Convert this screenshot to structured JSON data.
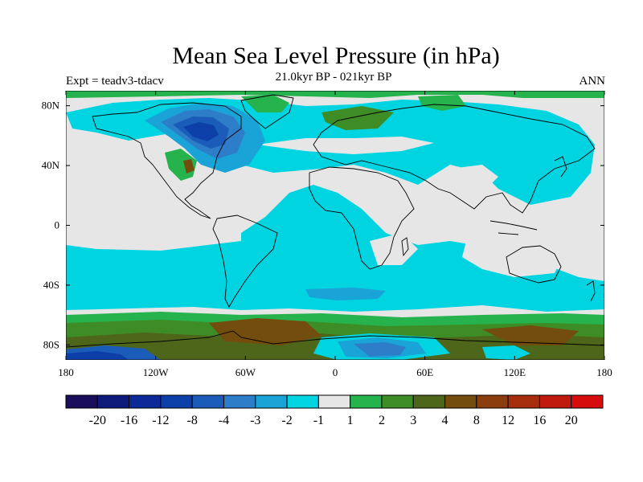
{
  "title": "Mean Sea Level Pressure (in hPa)",
  "subtitle": "21.0kyr BP - 021kyr BP",
  "left_string": "Expt = teadv3-tdacv",
  "right_string": "ANN",
  "map": {
    "lon_range": [
      -180,
      180
    ],
    "lat_range": [
      -90,
      90
    ],
    "lat_ticks": [
      {
        "value": 80,
        "label": "80N"
      },
      {
        "value": 40,
        "label": "40N"
      },
      {
        "value": 0,
        "label": "0"
      },
      {
        "value": -40,
        "label": "40S"
      },
      {
        "value": -80,
        "label": "80S"
      }
    ],
    "lon_ticks": [
      {
        "value": -180,
        "label": "180"
      },
      {
        "value": -120,
        "label": "120W"
      },
      {
        "value": -60,
        "label": "60W"
      },
      {
        "value": 0,
        "label": "0"
      },
      {
        "value": 60,
        "label": "60E"
      },
      {
        "value": 120,
        "label": "120E"
      },
      {
        "value": 180,
        "label": "180"
      }
    ],
    "background_color": "#e6e6e6"
  },
  "colorbar": {
    "colors": [
      "#1a0d5c",
      "#0d1a7a",
      "#0d2899",
      "#0d3fa8",
      "#1a5cb8",
      "#2e7dc9",
      "#1aa3d6",
      "#00d4e0",
      "#e6e6e6",
      "#26b34d",
      "#3d8c26",
      "#4d661a",
      "#734d0d",
      "#8c3d0d",
      "#a62e0d",
      "#bf1a0d",
      "#d60d0d"
    ],
    "labels": [
      "-20",
      "-16",
      "-12",
      "-8",
      "-4",
      "-3",
      "-2",
      "-1",
      "1",
      "2",
      "3",
      "4",
      "8",
      "12",
      "16",
      "20"
    ]
  }
}
